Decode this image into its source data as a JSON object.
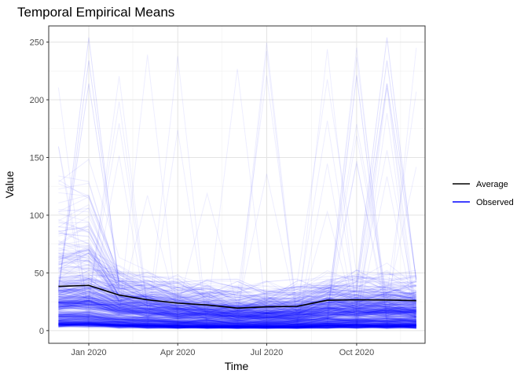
{
  "chart_data": {
    "type": "line",
    "title": "Temporal Empirical Means",
    "xlabel": "Time",
    "ylabel": "Value",
    "x_tick_labels": [
      "Jan 2020",
      "Apr 2020",
      "Jul 2020",
      "Oct 2020"
    ],
    "x_tick_dates": [
      "2020-01-01",
      "2020-04-01",
      "2020-07-01",
      "2020-10-01"
    ],
    "y_ticks": [
      0,
      50,
      100,
      150,
      200,
      250
    ],
    "ylim": [
      -11,
      264
    ],
    "xlim": [
      "2019-11-21",
      "2020-12-10"
    ],
    "grid": true,
    "legend_position": "right",
    "x": [
      "2019-12-01",
      "2020-01-01",
      "2020-02-01",
      "2020-03-01",
      "2020-04-01",
      "2020-05-01",
      "2020-06-01",
      "2020-07-01",
      "2020-08-01",
      "2020-09-01",
      "2020-10-01",
      "2020-11-01",
      "2020-12-01"
    ],
    "series": [
      {
        "name": "Average",
        "color": "#000000",
        "values": [
          38.3,
          39.2,
          30.8,
          26.7,
          23.8,
          22.2,
          19.5,
          20.6,
          21.0,
          26.3,
          26.7,
          26.5,
          26.0
        ]
      },
      {
        "name": "Observed",
        "color": "#0000FF",
        "note_range": [
          3,
          254
        ]
      }
    ]
  }
}
